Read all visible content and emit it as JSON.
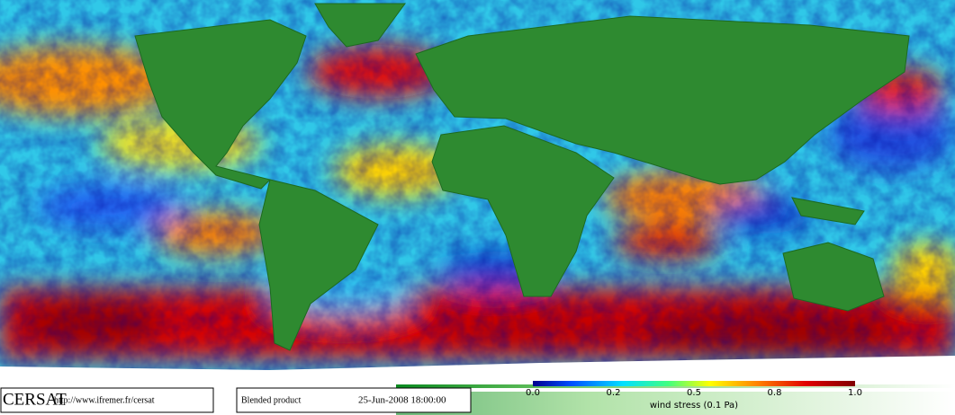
{
  "header": {
    "logo": "CERSAT",
    "url": "http://www.ifremer.fr/cersat"
  },
  "product": {
    "name": "Blended product",
    "date": "25-Jun-2008 18:00:00"
  },
  "colorbar": {
    "ticks": [
      "0.0",
      "0.2",
      "0.5",
      "0.8",
      "1.0"
    ],
    "label": "wind stress (0.1 Pa)"
  }
}
